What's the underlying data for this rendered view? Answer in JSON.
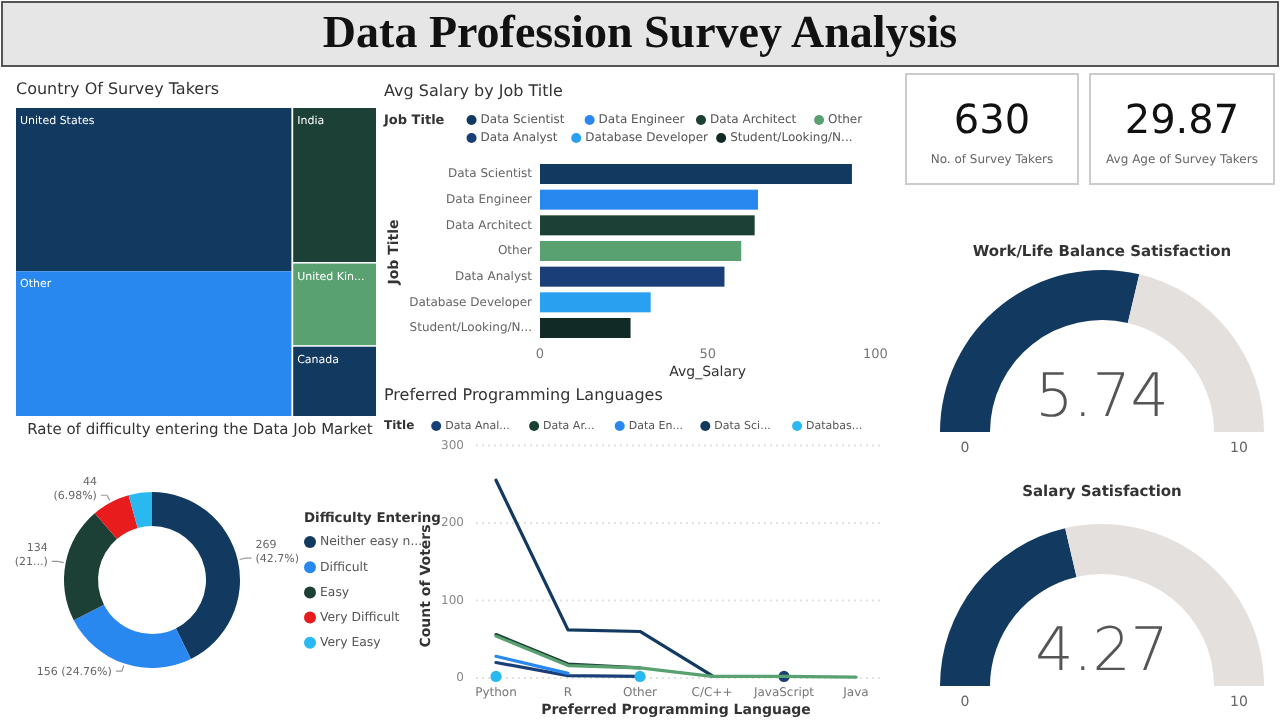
{
  "chart_data": [
    {
      "type": "other",
      "title": "Data Profession Survey Analysis"
    },
    {
      "type": "other",
      "title": "Country Of Survey Takers",
      "categories": [
        "United States",
        "Other",
        "India",
        "United Kin...",
        "Canada"
      ],
      "colors": [
        "#12395f",
        "#2888f0",
        "#1c3f36",
        "#5aa172",
        "#12395f"
      ]
    },
    {
      "type": "bar",
      "orientation": "horizontal",
      "stacked": true,
      "title": "Avg Salary by Job Title",
      "legend_title": "Job Title",
      "legend": "top",
      "xlabel": "Avg_Salary",
      "ylabel": "Job Title",
      "categories": [
        "Data Scientist",
        "Data Engineer",
        "Data Architect",
        "Other",
        "Data Analyst",
        "Database Developer",
        "Student/Looking/N..."
      ],
      "xlim": [
        0,
        100
      ],
      "xticks": [
        0,
        50,
        100
      ],
      "series": [
        {
          "name": "Data Scientist",
          "color": "#12395f",
          "values": [
            93,
            null,
            null,
            null,
            null,
            null,
            null
          ]
        },
        {
          "name": "Data Engineer",
          "color": "#2888f0",
          "values": [
            null,
            65,
            null,
            null,
            null,
            null,
            null
          ]
        },
        {
          "name": "Data Architect",
          "color": "#1c3f36",
          "values": [
            null,
            null,
            64,
            null,
            null,
            null,
            null
          ]
        },
        {
          "name": "Other",
          "color": "#5aa172",
          "values": [
            null,
            null,
            null,
            60,
            null,
            null,
            null
          ]
        },
        {
          "name": "Data Analyst",
          "color": "#1a3f78",
          "values": [
            null,
            null,
            null,
            null,
            55,
            null,
            null
          ]
        },
        {
          "name": "Database Developer",
          "color": "#29a0f0",
          "values": [
            null,
            null,
            null,
            null,
            null,
            33,
            null
          ]
        },
        {
          "name": "Student/Looking/N...",
          "color": "#112a25",
          "values": [
            null,
            null,
            null,
            null,
            null,
            null,
            27
          ]
        }
      ]
    },
    {
      "type": "donut",
      "title": "Rate of difficulty entering the Data Job Market",
      "legend_title": "Difficulty Entering",
      "legend": "right",
      "categories": [
        "Neither easy n...",
        "Difficult",
        "Easy",
        "Very Difficult",
        "Very Easy"
      ],
      "values": [
        269,
        156,
        134,
        44,
        27
      ],
      "value_labels": [
        "269 (42.7%)",
        "156 (24.76%)",
        "134 (21...)",
        "44 (6.98%)",
        null
      ],
      "colors": [
        "#12395f",
        "#2888f0",
        "#1c3f36",
        "#e81c1c",
        "#29b8f0"
      ]
    },
    {
      "type": "line",
      "title": "Preferred Programming Languages",
      "legend_title": "Title",
      "legend": "top",
      "xlabel": "Preferred Programming Language",
      "ylabel": "Count of Voters",
      "categories": [
        "Python",
        "R",
        "Other",
        "C/C++",
        "JavaScript",
        "Java"
      ],
      "ylim": [
        0,
        300
      ],
      "yticks": [
        0,
        100,
        200,
        300
      ],
      "grid": "y",
      "series": [
        {
          "name": "Data Anal...",
          "color": "#1a3f78",
          "values": [
            20,
            3,
            2,
            null,
            2,
            null
          ]
        },
        {
          "name": "Data Ar...",
          "color": "#1c3f36",
          "values": [
            56,
            18,
            13,
            null,
            null,
            null
          ]
        },
        {
          "name": "Data En...",
          "color": "#2888f0",
          "values": [
            28,
            6,
            null,
            null,
            null,
            null
          ]
        },
        {
          "name": "Data Sci...",
          "color": "#12395f",
          "values": [
            255,
            62,
            60,
            3,
            null,
            null
          ]
        },
        {
          "name": "Databas...",
          "type": "scatter",
          "color": "#29b8f0",
          "values": [
            2,
            null,
            2,
            null,
            null,
            null
          ]
        },
        {
          "color": "#5aa172",
          "values": [
            54,
            16,
            13,
            2,
            2,
            1
          ]
        }
      ]
    },
    {
      "type": "other",
      "annotations": [
        "630",
        "No. of Survey Takers"
      ]
    },
    {
      "type": "other",
      "annotations": [
        "29.87",
        "Avg Age of Survey Takers"
      ]
    },
    {
      "type": "donut",
      "title": "Work/Life Balance Satisfaction",
      "categories": [
        null,
        null
      ],
      "values": [
        5.74,
        4.26
      ],
      "colors": [
        "#12395f",
        "#e4e0dd"
      ],
      "value_labels": [
        "5.74",
        null
      ],
      "annotations": [
        "0",
        "10"
      ]
    },
    {
      "type": "donut",
      "title": "Salary Satisfaction",
      "categories": [
        null,
        null
      ],
      "values": [
        4.27,
        5.73
      ],
      "colors": [
        "#12395f",
        "#e4e0dd"
      ],
      "value_labels": [
        "4.27",
        null
      ],
      "annotations": [
        "0",
        "10"
      ]
    }
  ]
}
